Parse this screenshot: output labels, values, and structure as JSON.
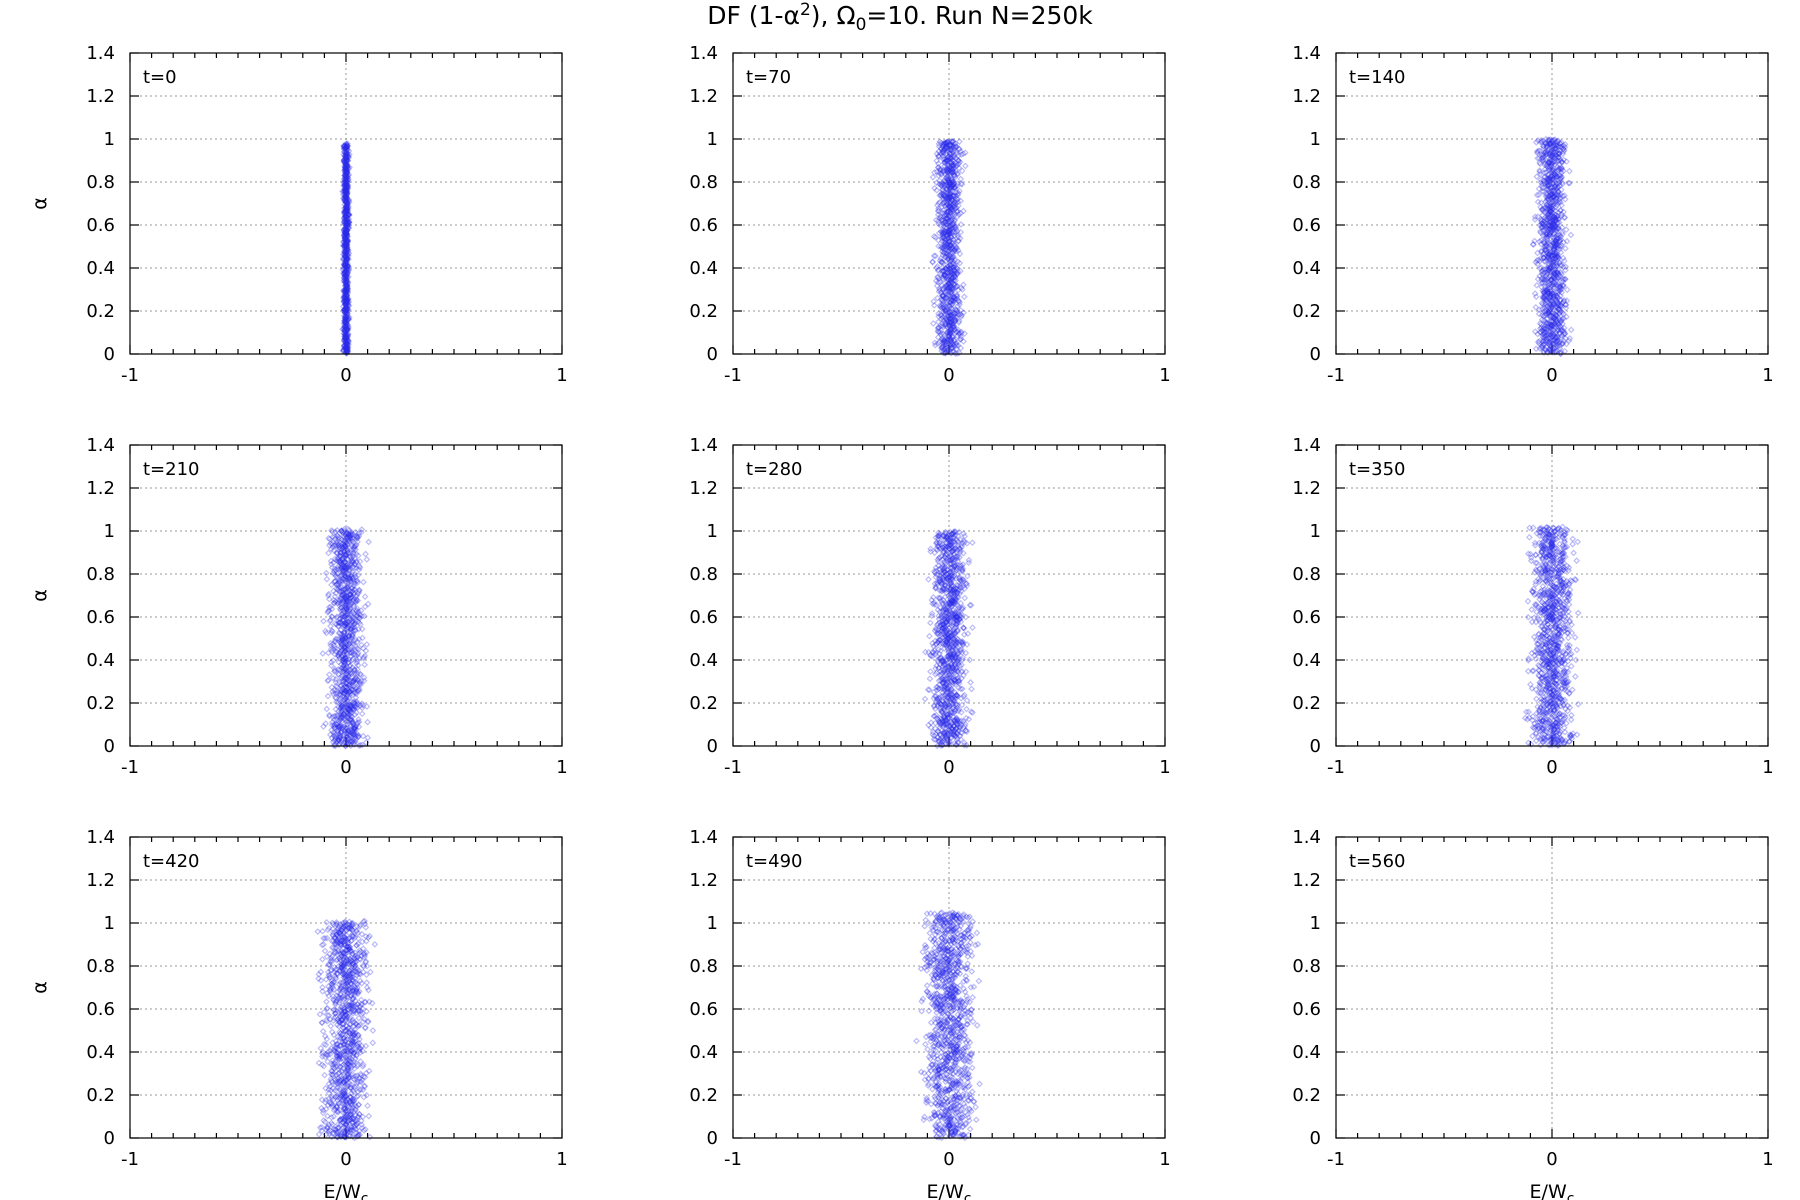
{
  "title": {
    "prefix": "DF (1-α",
    "sup": "2",
    "middle": "), Ω",
    "sub": "0",
    "suffix": "=10. Run N=250k"
  },
  "xlabel": {
    "base": "E/W",
    "sub": "c"
  },
  "ylabel": "α",
  "series_color": "#2a2ae8",
  "chart_data": [
    {
      "type": "scatter",
      "label": "t=0",
      "xlim": [
        -1,
        1
      ],
      "ylim": [
        0,
        1.4
      ],
      "xticks": [
        "-1",
        "0",
        "1"
      ],
      "yticks": [
        "0",
        "0.2",
        "0.4",
        "0.6",
        "0.8",
        "1",
        "1.2",
        "1.4"
      ],
      "x_center": 0,
      "x_spread": 0.012,
      "y_range": [
        0,
        0.98
      ],
      "n_points": 900,
      "grid": true
    },
    {
      "type": "scatter",
      "label": "t=70",
      "xlim": [
        -1,
        1
      ],
      "ylim": [
        0,
        1.4
      ],
      "xticks": [
        "-1",
        "0",
        "1"
      ],
      "yticks": [
        "0",
        "0.2",
        "0.4",
        "0.6",
        "0.8",
        "1",
        "1.2",
        "1.4"
      ],
      "x_center": 0,
      "x_spread": 0.055,
      "y_range": [
        0,
        0.99
      ],
      "n_points": 1000,
      "grid": true
    },
    {
      "type": "scatter",
      "label": "t=140",
      "xlim": [
        -1,
        1
      ],
      "ylim": [
        0,
        1.4
      ],
      "xticks": [
        "-1",
        "0",
        "1"
      ],
      "yticks": [
        "0",
        "0.2",
        "0.4",
        "0.6",
        "0.8",
        "1",
        "1.2",
        "1.4"
      ],
      "x_center": 0,
      "x_spread": 0.065,
      "y_range": [
        0,
        1.0
      ],
      "n_points": 1100,
      "grid": true
    },
    {
      "type": "scatter",
      "label": "t=210",
      "xlim": [
        -1,
        1
      ],
      "ylim": [
        0,
        1.4
      ],
      "xticks": [
        "-1",
        "0",
        "1"
      ],
      "yticks": [
        "0",
        "0.2",
        "0.4",
        "0.6",
        "0.8",
        "1",
        "1.2",
        "1.4"
      ],
      "x_center": 0,
      "x_spread": 0.08,
      "y_range": [
        0,
        1.01
      ],
      "n_points": 1100,
      "grid": true
    },
    {
      "type": "scatter",
      "label": "t=280",
      "xlim": [
        -1,
        1
      ],
      "ylim": [
        0,
        1.4
      ],
      "xticks": [
        "-1",
        "0",
        "1"
      ],
      "yticks": [
        "0",
        "0.2",
        "0.4",
        "0.6",
        "0.8",
        "1",
        "1.2",
        "1.4"
      ],
      "x_center": 0,
      "x_spread": 0.08,
      "y_range": [
        0,
        1.0
      ],
      "n_points": 1100,
      "grid": true
    },
    {
      "type": "scatter",
      "label": "t=350",
      "xlim": [
        -1,
        1
      ],
      "ylim": [
        0,
        1.4
      ],
      "xticks": [
        "-1",
        "0",
        "1"
      ],
      "yticks": [
        "0",
        "0.2",
        "0.4",
        "0.6",
        "0.8",
        "1",
        "1.2",
        "1.4"
      ],
      "x_center": 0,
      "x_spread": 0.09,
      "y_range": [
        0,
        1.02
      ],
      "n_points": 1100,
      "grid": true
    },
    {
      "type": "scatter",
      "label": "t=420",
      "xlim": [
        -1,
        1
      ],
      "ylim": [
        0,
        1.4
      ],
      "xticks": [
        "-1",
        "0",
        "1"
      ],
      "yticks": [
        "0",
        "0.2",
        "0.4",
        "0.6",
        "0.8",
        "1",
        "1.2",
        "1.4"
      ],
      "x_center": 0,
      "x_spread": 0.1,
      "y_range": [
        0,
        1.01
      ],
      "n_points": 1100,
      "grid": true
    },
    {
      "type": "scatter",
      "label": "t=490",
      "xlim": [
        -1,
        1
      ],
      "ylim": [
        0,
        1.4
      ],
      "xticks": [
        "-1",
        "0",
        "1"
      ],
      "yticks": [
        "0",
        "0.2",
        "0.4",
        "0.6",
        "0.8",
        "1",
        "1.2",
        "1.4"
      ],
      "x_center": 0,
      "x_spread": 0.11,
      "y_range": [
        0,
        1.05
      ],
      "n_points": 1100,
      "grid": true
    },
    {
      "type": "scatter",
      "label": "t=560",
      "xlim": [
        -1,
        1
      ],
      "ylim": [
        0,
        1.4
      ],
      "xticks": [
        "-1",
        "0",
        "1"
      ],
      "yticks": [
        "0",
        "0.2",
        "0.4",
        "0.6",
        "0.8",
        "1",
        "1.2",
        "1.4"
      ],
      "x_center": 0,
      "x_spread": 0,
      "y_range": [
        0,
        0
      ],
      "n_points": 0,
      "grid": true
    }
  ]
}
